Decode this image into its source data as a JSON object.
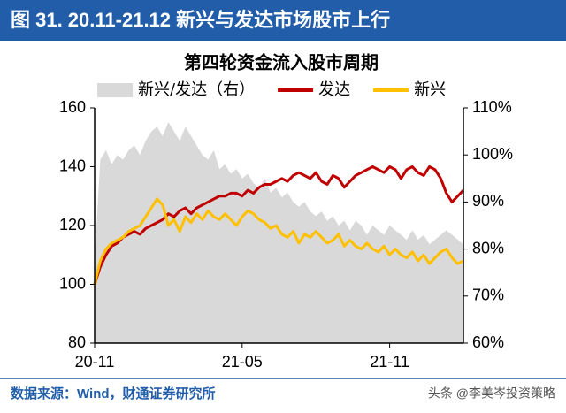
{
  "header": {
    "title": "图 31. 20.11-21.12 新兴与发达市场股市上行"
  },
  "chart_data": {
    "type": "line",
    "title": "第四轮资金流入股市周期",
    "categories": [
      "20-11",
      null,
      null,
      null,
      null,
      null,
      null,
      null,
      null,
      null,
      null,
      null,
      null,
      null,
      null,
      null,
      null,
      null,
      null,
      null,
      null,
      null,
      null,
      null,
      null,
      null,
      "21-05",
      null,
      null,
      null,
      null,
      null,
      null,
      null,
      null,
      null,
      null,
      null,
      null,
      null,
      null,
      null,
      null,
      null,
      null,
      null,
      null,
      null,
      null,
      null,
      null,
      null,
      "21-11",
      null,
      null,
      null,
      null,
      null,
      null,
      null,
      null,
      null,
      null,
      null,
      null,
      null
    ],
    "series": [
      {
        "name": "新兴/发达（右）",
        "color": "#d9d9d9",
        "style": "area",
        "axis": "y2",
        "values": [
          78,
          99,
          101,
          98,
          100,
          99,
          101,
          102,
          100,
          103,
          105,
          106,
          104,
          107,
          105,
          103,
          106,
          104,
          102,
          100,
          99,
          101,
          97,
          98,
          96,
          97,
          95,
          96,
          94,
          93,
          95,
          92,
          93,
          91,
          92,
          90,
          89,
          90,
          88,
          87,
          88,
          86,
          87,
          85,
          86,
          84,
          86,
          85,
          83,
          85,
          84,
          83,
          85,
          84,
          83,
          82,
          84,
          82,
          83,
          81,
          82,
          83,
          84,
          83,
          82,
          81
        ]
      },
      {
        "name": "发达",
        "color": "#c00000",
        "style": "line",
        "values": [
          100,
          106,
          110,
          113,
          114,
          116,
          117,
          118,
          117,
          119,
          120,
          121,
          122,
          124,
          123,
          125,
          126,
          124,
          126,
          127,
          128,
          129,
          130,
          130,
          131,
          131,
          130,
          132,
          131,
          133,
          134,
          134,
          135,
          136,
          135,
          137,
          138,
          137,
          136,
          138,
          135,
          134,
          137,
          136,
          133,
          135,
          137,
          138,
          139,
          140,
          139,
          138,
          140,
          139,
          136,
          139,
          140,
          138,
          137,
          140,
          139,
          136,
          131,
          128,
          130,
          132
        ]
      },
      {
        "name": "新兴",
        "color": "#ffc000",
        "style": "line",
        "values": [
          100,
          108,
          112,
          114,
          115,
          116,
          118,
          119,
          120,
          123,
          126,
          129,
          127,
          120,
          122,
          118,
          123,
          121,
          124,
          122,
          125,
          123,
          122,
          124,
          122,
          120,
          123,
          125,
          124,
          122,
          121,
          119,
          120,
          117,
          116,
          118,
          114,
          117,
          116,
          118,
          116,
          114,
          115,
          117,
          113,
          115,
          113,
          112,
          114,
          112,
          111,
          113,
          110,
          112,
          110,
          109,
          111,
          108,
          110,
          107,
          109,
          111,
          112,
          109,
          107,
          108
        ]
      }
    ],
    "ylim": [
      80,
      160
    ],
    "yticks": [
      80,
      100,
      120,
      140,
      160
    ],
    "y2lim": [
      60,
      110
    ],
    "y2ticks": [
      {
        "value": 60,
        "label": "60%"
      },
      {
        "value": 70,
        "label": "70%"
      },
      {
        "value": 80,
        "label": "80%"
      },
      {
        "value": 90,
        "label": "90%"
      },
      {
        "value": 100,
        "label": "100%"
      },
      {
        "value": 110,
        "label": "110%"
      }
    ],
    "grid": false
  },
  "footer": {
    "source": "数据来源：Wind，财通证券研究所",
    "watermark": "头条 @李美岑投资策略"
  }
}
